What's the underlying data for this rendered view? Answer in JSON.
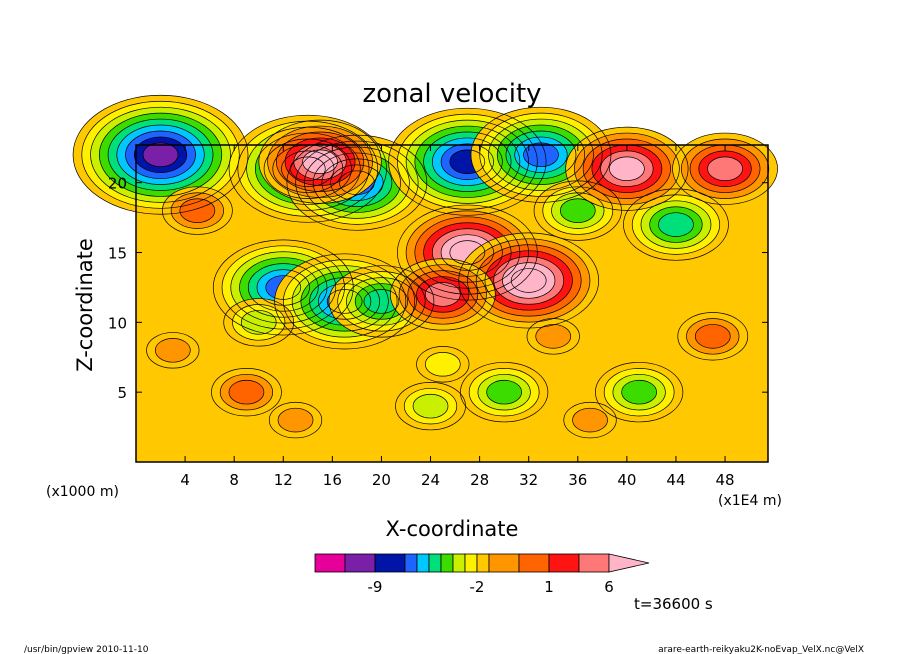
{
  "chart_data": {
    "type": "heatmap",
    "title": "zonal velocity",
    "xlabel": "X-coordinate",
    "ylabel": "Z-coordinate",
    "x_unit_left": "(x1000 m)",
    "x_unit_right": "(x1E4 m)",
    "xlim": [
      0,
      51.5
    ],
    "ylim": [
      0,
      22.7
    ],
    "x_ticks": [
      {
        "value": 4,
        "label": "4"
      },
      {
        "value": 8,
        "label": "8"
      },
      {
        "value": 12,
        "label": "12"
      },
      {
        "value": 16,
        "label": "16"
      },
      {
        "value": 20,
        "label": "20"
      },
      {
        "value": 24,
        "label": "24"
      },
      {
        "value": 28,
        "label": "28"
      },
      {
        "value": 32,
        "label": "32"
      },
      {
        "value": 36,
        "label": "36"
      },
      {
        "value": 40,
        "label": "40"
      },
      {
        "value": 44,
        "label": "44"
      },
      {
        "value": 48,
        "label": "48"
      }
    ],
    "y_ticks": [
      {
        "value": 5,
        "label": "5"
      },
      {
        "value": 10,
        "label": "10"
      },
      {
        "value": 15,
        "label": "15"
      },
      {
        "value": 20,
        "label": "20"
      }
    ],
    "colorbar": {
      "colors": [
        "#e60099",
        "#7a1fa8",
        "#0014a8",
        "#1e64ff",
        "#00c8ff",
        "#00e07a",
        "#3cdc00",
        "#c8f000",
        "#fff000",
        "#ffc800",
        "#ff9600",
        "#ff6400",
        "#ff1414",
        "#ff7878",
        "#ffb4c8"
      ],
      "labels": [
        {
          "value": -9,
          "label": "-9"
        },
        {
          "value": -2,
          "label": "-2"
        },
        {
          "value": 1,
          "label": "1"
        },
        {
          "value": 6,
          "label": "6"
        }
      ]
    },
    "field_blobs": [
      {
        "x": 14,
        "y": 21,
        "v": -7
      },
      {
        "x": 18,
        "y": 20,
        "v": -6
      },
      {
        "x": 12,
        "y": 12.5,
        "v": -6
      },
      {
        "x": 17,
        "y": 11.5,
        "v": -6
      },
      {
        "x": 20,
        "y": 11.5,
        "v": -4
      },
      {
        "x": 10,
        "y": 10,
        "v": -2
      },
      {
        "x": 2,
        "y": 22,
        "v": -8
      },
      {
        "x": 27,
        "y": 21.5,
        "v": -7
      },
      {
        "x": 33,
        "y": 22,
        "v": -6
      },
      {
        "x": 36,
        "y": 18,
        "v": -3
      },
      {
        "x": 44,
        "y": 17,
        "v": -4
      },
      {
        "x": 30,
        "y": 5,
        "v": -3
      },
      {
        "x": 41,
        "y": 5,
        "v": -3
      },
      {
        "x": 24,
        "y": 4,
        "v": -2
      },
      {
        "x": 27,
        "y": 15,
        "v": 6
      },
      {
        "x": 32,
        "y": 13,
        "v": 6
      },
      {
        "x": 25,
        "y": 12,
        "v": 4
      },
      {
        "x": 40,
        "y": 21,
        "v": 5
      },
      {
        "x": 15,
        "y": 21.5,
        "v": 5
      },
      {
        "x": 5,
        "y": 18,
        "v": 2
      },
      {
        "x": 48,
        "y": 21,
        "v": 4
      },
      {
        "x": 9,
        "y": 5,
        "v": 2
      },
      {
        "x": 13,
        "y": 3,
        "v": 1
      },
      {
        "x": 37,
        "y": 3,
        "v": 1
      },
      {
        "x": 47,
        "y": 9,
        "v": 2
      },
      {
        "x": 3,
        "y": 8,
        "v": 1
      },
      {
        "x": 25,
        "y": 7,
        "v": -1
      },
      {
        "x": 34,
        "y": 9,
        "v": 1
      }
    ]
  },
  "time_label": "t=36600 s",
  "footer_left": "/usr/bin/gpview   2010-11-10",
  "footer_right": "arare-earth-reikyaku2K-noEvap_VelX.nc@VelX",
  "colors": {
    "frame": "#000000",
    "background": "#ffffff"
  }
}
